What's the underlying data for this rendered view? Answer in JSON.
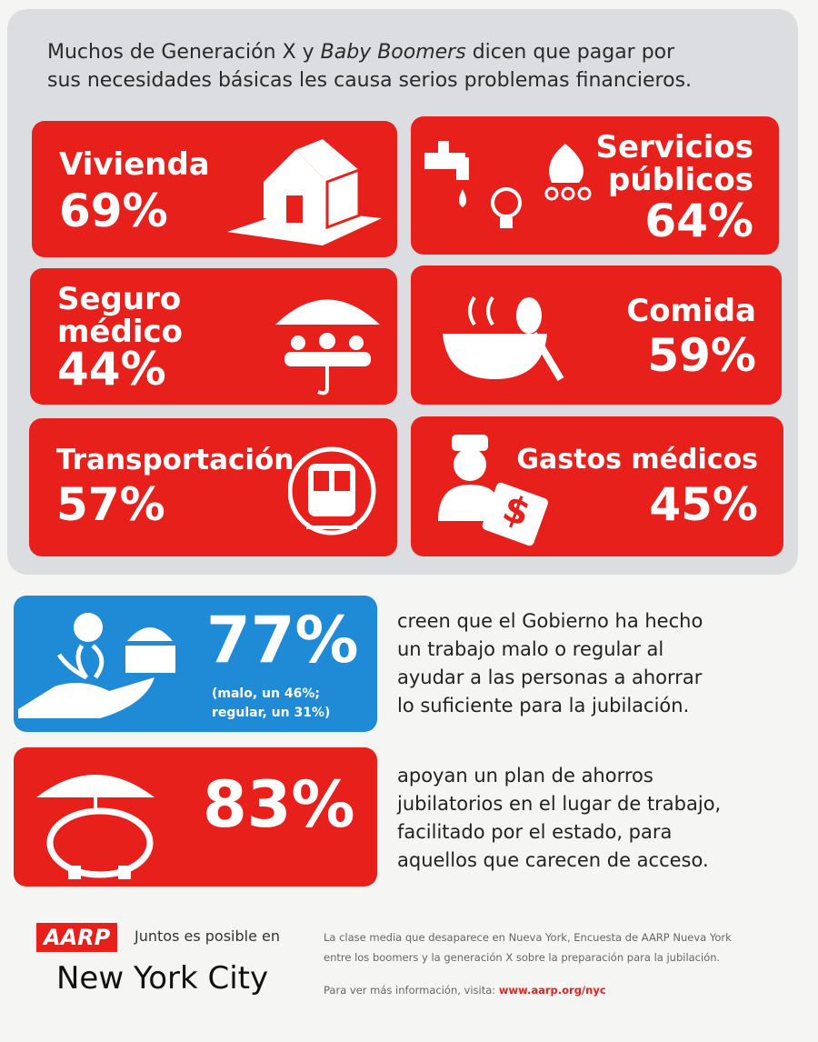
{
  "header": {
    "title": {
      "line1_before": "Muchos de Generación X y ",
      "line1_emphasis": "Baby Boomers",
      "line1_after": " dicen que pagar por",
      "line2": "sus necesidades básicas les causa serios problemas financieros."
    }
  },
  "cards": [
    {
      "label": [
        "Vivienda"
      ],
      "percent": "69%"
    },
    {
      "label": [
        "Servicios",
        "públicos"
      ],
      "percent": "64%"
    },
    {
      "label": [
        "Seguro",
        "médico"
      ],
      "percent": "44%"
    },
    {
      "label": [
        "Comida"
      ],
      "percent": "59%"
    },
    {
      "label": [
        "Transportación"
      ],
      "percent": "57%"
    },
    {
      "label": [
        "Gastos médicos"
      ],
      "percent": "45%"
    }
  ],
  "findings": [
    {
      "percent": "77%",
      "note": [
        "(malo, un 46%;",
        "regular, un 31%)"
      ],
      "text": [
        "creen que el Gobierno ha hecho",
        "un trabajo malo o regular al",
        "ayudar a las personas a ahorrar",
        "lo suficiente para la jubilación."
      ]
    },
    {
      "percent": "83%",
      "text": [
        "apoyan un plan de ahorros",
        "jubilatorios en el lugar de trabajo,",
        "facilitado por el estado, para",
        "aquellos que carecen de acceso."
      ]
    }
  ],
  "footer": {
    "logo": "AARP",
    "tagline": "Juntos es posible en",
    "city": "New York City",
    "source": [
      "La clase media que desaparece en Nueva York, Encuesta de AARP Nueva York",
      "entre los boomers y la generación X sobre la preparación para la jubilación."
    ],
    "more_info": "Para ver más información, visita: ",
    "url": "www.aarp.org/nyc"
  }
}
